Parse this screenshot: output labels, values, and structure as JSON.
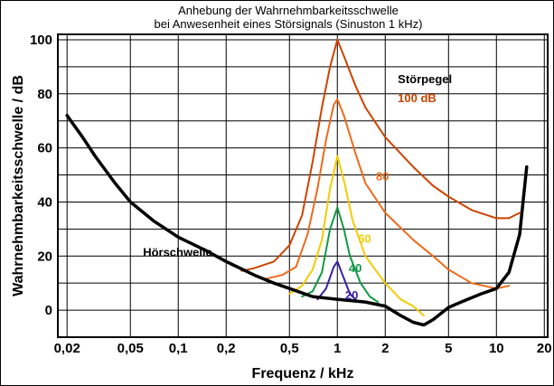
{
  "chart_data": {
    "type": "line",
    "title_lines": [
      "Anhebung der Wahrnehmbarkeitsschwelle",
      "bei Anwesenheit eines Störsignals (Sinuston 1 kHz)"
    ],
    "xlabel": "Frequenz / kHz",
    "ylabel": "Wahrnehmbarkeitsschwelle / dB",
    "x_scale": "log",
    "xlim": [
      0.0175,
      21
    ],
    "ylim": [
      -10,
      102
    ],
    "x_ticks": [
      0.02,
      0.05,
      0.1,
      0.2,
      0.5,
      1,
      2,
      5,
      10,
      20
    ],
    "x_tick_labels": [
      "0,02",
      "0,05",
      "0,1",
      "0,2",
      "0,5",
      "1",
      "2",
      "5",
      "10",
      "20"
    ],
    "y_ticks": [
      0,
      20,
      40,
      60,
      80,
      100
    ],
    "y_tick_labels": [
      "0",
      "20",
      "40",
      "60",
      "80",
      "100"
    ],
    "grid": true,
    "legend_title": "Störpegel",
    "series": [
      {
        "name": "Hörschwelle",
        "color": "#000000",
        "points": [
          [
            0.02,
            72
          ],
          [
            0.025,
            64
          ],
          [
            0.03,
            57
          ],
          [
            0.04,
            47
          ],
          [
            0.05,
            40
          ],
          [
            0.07,
            33
          ],
          [
            0.1,
            27
          ],
          [
            0.15,
            22
          ],
          [
            0.2,
            18
          ],
          [
            0.3,
            13
          ],
          [
            0.4,
            10
          ],
          [
            0.5,
            8
          ],
          [
            0.7,
            5
          ],
          [
            1,
            4
          ],
          [
            1.5,
            3
          ],
          [
            2,
            1.5
          ],
          [
            2.5,
            -2
          ],
          [
            3,
            -4.5
          ],
          [
            3.5,
            -5.5
          ],
          [
            4,
            -3.5
          ],
          [
            5,
            1
          ],
          [
            6,
            3
          ],
          [
            8,
            6
          ],
          [
            10,
            8
          ],
          [
            12,
            14
          ],
          [
            14,
            28
          ],
          [
            15.5,
            53
          ]
        ]
      },
      {
        "name": "100 dB",
        "label": "100 dB",
        "color": "#cc4400",
        "points": [
          [
            0.25,
            14.5
          ],
          [
            0.3,
            15.5
          ],
          [
            0.4,
            18
          ],
          [
            0.5,
            24
          ],
          [
            0.6,
            35
          ],
          [
            0.7,
            55
          ],
          [
            0.8,
            75
          ],
          [
            0.9,
            90
          ],
          [
            1,
            100
          ],
          [
            1.1,
            94
          ],
          [
            1.3,
            83
          ],
          [
            1.5,
            75
          ],
          [
            2,
            64
          ],
          [
            3,
            53
          ],
          [
            4,
            46
          ],
          [
            5,
            42
          ],
          [
            7,
            37
          ],
          [
            10,
            34
          ],
          [
            12,
            34
          ],
          [
            14,
            36
          ]
        ]
      },
      {
        "name": "80",
        "label": "80",
        "color": "#ee6a1a",
        "points": [
          [
            0.35,
            11.5
          ],
          [
            0.45,
            13
          ],
          [
            0.55,
            16
          ],
          [
            0.65,
            28
          ],
          [
            0.75,
            45
          ],
          [
            0.85,
            63
          ],
          [
            0.95,
            76
          ],
          [
            1,
            78
          ],
          [
            1.1,
            72
          ],
          [
            1.3,
            58
          ],
          [
            1.5,
            47
          ],
          [
            2,
            36
          ],
          [
            3,
            26
          ],
          [
            4,
            20
          ],
          [
            5,
            15
          ],
          [
            7,
            10
          ],
          [
            10,
            8
          ],
          [
            12,
            9
          ]
        ]
      },
      {
        "name": "60",
        "label": "60",
        "color": "#f2cc00",
        "points": [
          [
            0.5,
            6
          ],
          [
            0.6,
            9
          ],
          [
            0.7,
            15
          ],
          [
            0.8,
            26
          ],
          [
            0.9,
            45
          ],
          [
            1,
            57
          ],
          [
            1.1,
            48
          ],
          [
            1.25,
            33
          ],
          [
            1.5,
            20
          ],
          [
            2,
            10
          ],
          [
            2.5,
            4
          ],
          [
            3,
            1.5
          ],
          [
            3.5,
            -2
          ]
        ]
      },
      {
        "name": "40",
        "label": "40",
        "color": "#119944",
        "points": [
          [
            0.6,
            5
          ],
          [
            0.7,
            7
          ],
          [
            0.8,
            14
          ],
          [
            0.9,
            30
          ],
          [
            1,
            38
          ],
          [
            1.1,
            30
          ],
          [
            1.2,
            20
          ],
          [
            1.4,
            10
          ],
          [
            1.6,
            5
          ],
          [
            1.8,
            3
          ]
        ]
      },
      {
        "name": "20",
        "label": "20",
        "color": "#3a1ea8",
        "points": [
          [
            0.75,
            4
          ],
          [
            0.85,
            8
          ],
          [
            0.95,
            16
          ],
          [
            1,
            18
          ],
          [
            1.08,
            13
          ],
          [
            1.2,
            6
          ],
          [
            1.3,
            4
          ]
        ]
      }
    ],
    "annotations": [
      {
        "text": "Hörschwelle",
        "x": 0.06,
        "y": 20
      },
      {
        "text": "Störpegel",
        "x": 2.4,
        "y": 84
      },
      {
        "text": "100 dB",
        "x": 2.4,
        "y": 77
      },
      {
        "text": "80",
        "x": 1.75,
        "y": 48
      },
      {
        "text": "60",
        "x": 1.35,
        "y": 25
      },
      {
        "text": "40",
        "x": 1.18,
        "y": 14
      },
      {
        "text": "20",
        "x": 1.12,
        "y": 4
      }
    ]
  }
}
